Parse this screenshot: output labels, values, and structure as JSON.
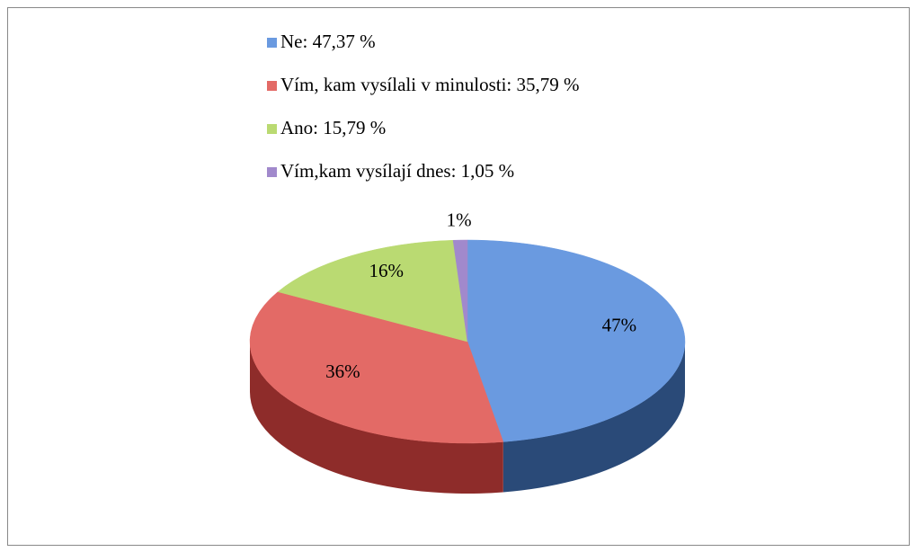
{
  "chart_data": {
    "type": "pie3d",
    "categories": [
      "Ne: 47,37 %",
      "Vím, kam vysílali v minulosti: 35,79 %",
      "Ano: 15,79 %",
      "Vím,kam vysílají dnes: 1,05 %"
    ],
    "values": [
      47.37,
      35.79,
      15.79,
      1.05
    ],
    "value_labels": [
      "47%",
      "36%",
      "16%",
      "1%"
    ],
    "colors": [
      "#6a9ae0",
      "#e36a66",
      "#bada72",
      "#a189cc"
    ],
    "side_colors": [
      "#2a4a78",
      "#8e2c2a",
      "#6f8a34",
      "#5d4784"
    ],
    "legend": "top"
  }
}
